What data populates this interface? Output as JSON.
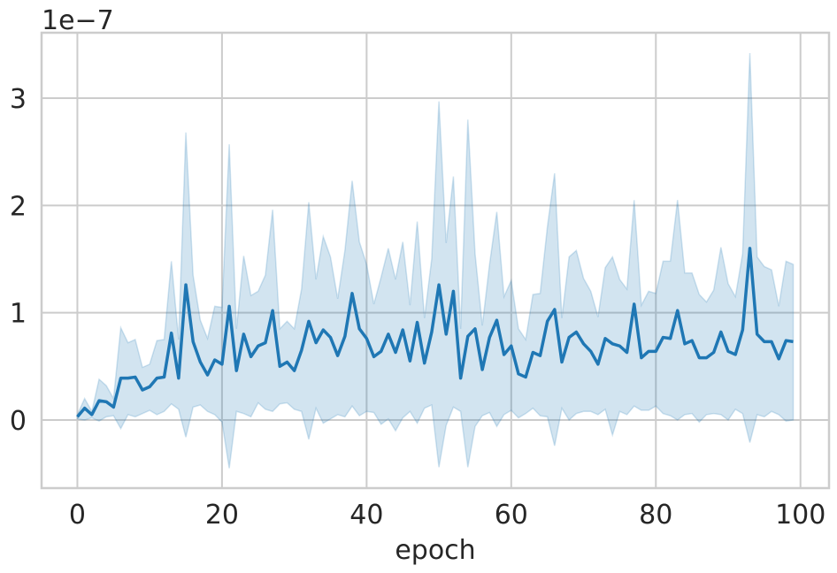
{
  "chart_data": {
    "type": "line",
    "offset_label": "1e−7",
    "xlabel": "epoch",
    "x": [
      0,
      1,
      2,
      3,
      4,
      5,
      6,
      7,
      8,
      9,
      10,
      11,
      12,
      13,
      14,
      15,
      16,
      17,
      18,
      19,
      20,
      21,
      22,
      23,
      24,
      25,
      26,
      27,
      28,
      29,
      30,
      31,
      32,
      33,
      34,
      35,
      36,
      37,
      38,
      39,
      40,
      41,
      42,
      43,
      44,
      45,
      46,
      47,
      48,
      49,
      50,
      51,
      52,
      53,
      54,
      55,
      56,
      57,
      58,
      59,
      60,
      61,
      62,
      63,
      64,
      65,
      66,
      67,
      68,
      69,
      70,
      71,
      72,
      73,
      74,
      75,
      76,
      77,
      78,
      79,
      80,
      81,
      82,
      83,
      84,
      85,
      86,
      87,
      88,
      89,
      90,
      91,
      92,
      93,
      94,
      95,
      96,
      97,
      98,
      99
    ],
    "series": [
      {
        "color": "#1f77b4",
        "values": [
          0.03,
          0.11,
          0.05,
          0.18,
          0.17,
          0.12,
          0.39,
          0.39,
          0.4,
          0.28,
          0.31,
          0.39,
          0.4,
          0.81,
          0.39,
          1.26,
          0.73,
          0.54,
          0.42,
          0.56,
          0.52,
          1.06,
          0.46,
          0.8,
          0.59,
          0.69,
          0.72,
          1.02,
          0.5,
          0.54,
          0.46,
          0.65,
          0.92,
          0.72,
          0.84,
          0.77,
          0.6,
          0.78,
          1.18,
          0.85,
          0.76,
          0.59,
          0.64,
          0.8,
          0.63,
          0.84,
          0.55,
          0.91,
          0.53,
          0.82,
          1.26,
          0.8,
          1.2,
          0.39,
          0.78,
          0.85,
          0.47,
          0.77,
          0.93,
          0.61,
          0.69,
          0.43,
          0.4,
          0.63,
          0.6,
          0.92,
          1.03,
          0.54,
          0.77,
          0.82,
          0.71,
          0.64,
          0.52,
          0.76,
          0.71,
          0.69,
          0.63,
          1.08,
          0.58,
          0.64,
          0.64,
          0.77,
          0.76,
          1.02,
          0.71,
          0.74,
          0.58,
          0.58,
          0.63,
          0.82,
          0.64,
          0.61,
          0.84,
          1.6,
          0.8,
          0.73,
          0.73,
          0.57,
          0.74,
          0.73
        ],
        "band_upper": [
          0.05,
          0.2,
          0.08,
          0.38,
          0.32,
          0.2,
          0.86,
          0.72,
          0.75,
          0.49,
          0.52,
          0.74,
          0.75,
          1.48,
          0.75,
          2.68,
          1.35,
          0.93,
          0.76,
          1.06,
          1.05,
          2.57,
          0.85,
          1.53,
          1.16,
          1.2,
          1.35,
          1.96,
          0.85,
          0.92,
          0.85,
          1.22,
          2.03,
          1.31,
          1.71,
          1.52,
          1.13,
          1.58,
          2.23,
          1.66,
          1.45,
          1.08,
          1.33,
          1.6,
          1.31,
          1.66,
          1.07,
          1.85,
          0.95,
          1.5,
          2.97,
          1.65,
          2.27,
          0.85,
          2.8,
          1.55,
          0.88,
          1.45,
          1.94,
          1.15,
          1.3,
          0.85,
          0.75,
          1.17,
          1.18,
          1.8,
          2.3,
          0.95,
          1.52,
          1.58,
          1.32,
          1.2,
          0.96,
          1.42,
          1.52,
          1.31,
          1.22,
          2.05,
          1.07,
          1.2,
          1.18,
          1.48,
          1.48,
          2.05,
          1.37,
          1.37,
          1.17,
          1.1,
          1.21,
          1.61,
          1.27,
          1.15,
          1.55,
          3.42,
          1.52,
          1.43,
          1.4,
          1.06,
          1.48,
          1.45
        ],
        "band_lower": [
          0.01,
          0.0,
          0.02,
          -0.01,
          0.03,
          0.04,
          -0.08,
          0.05,
          0.03,
          0.06,
          0.09,
          0.05,
          0.08,
          0.15,
          0.1,
          -0.16,
          0.12,
          0.14,
          0.08,
          0.05,
          -0.02,
          -0.45,
          0.08,
          0.06,
          0.03,
          0.16,
          0.1,
          0.08,
          0.15,
          0.16,
          0.1,
          0.08,
          -0.18,
          0.11,
          -0.03,
          0.01,
          0.05,
          0.03,
          0.13,
          0.04,
          0.08,
          0.07,
          -0.04,
          0.01,
          -0.1,
          0.02,
          0.08,
          -0.03,
          0.11,
          0.14,
          -0.44,
          -0.05,
          0.12,
          0.08,
          -0.44,
          -0.06,
          0.04,
          0.07,
          -0.06,
          0.05,
          0.09,
          0.02,
          0.06,
          0.11,
          0.04,
          0.03,
          -0.24,
          0.11,
          0.0,
          0.06,
          0.08,
          0.08,
          0.05,
          0.1,
          -0.14,
          0.08,
          0.05,
          0.13,
          0.09,
          0.09,
          0.13,
          0.06,
          0.04,
          0.0,
          0.05,
          0.06,
          -0.02,
          0.05,
          0.06,
          0.05,
          0.0,
          0.1,
          0.06,
          -0.21,
          0.05,
          0.03,
          0.08,
          0.05,
          -0.01,
          0.0
        ]
      }
    ],
    "xlim": [
      -4.95,
      103.95
    ],
    "ylim": [
      -0.635,
      3.61
    ],
    "xticks": [
      0,
      20,
      40,
      60,
      80,
      100
    ],
    "yticks": [
      0,
      1,
      2,
      3
    ],
    "grid": true
  }
}
